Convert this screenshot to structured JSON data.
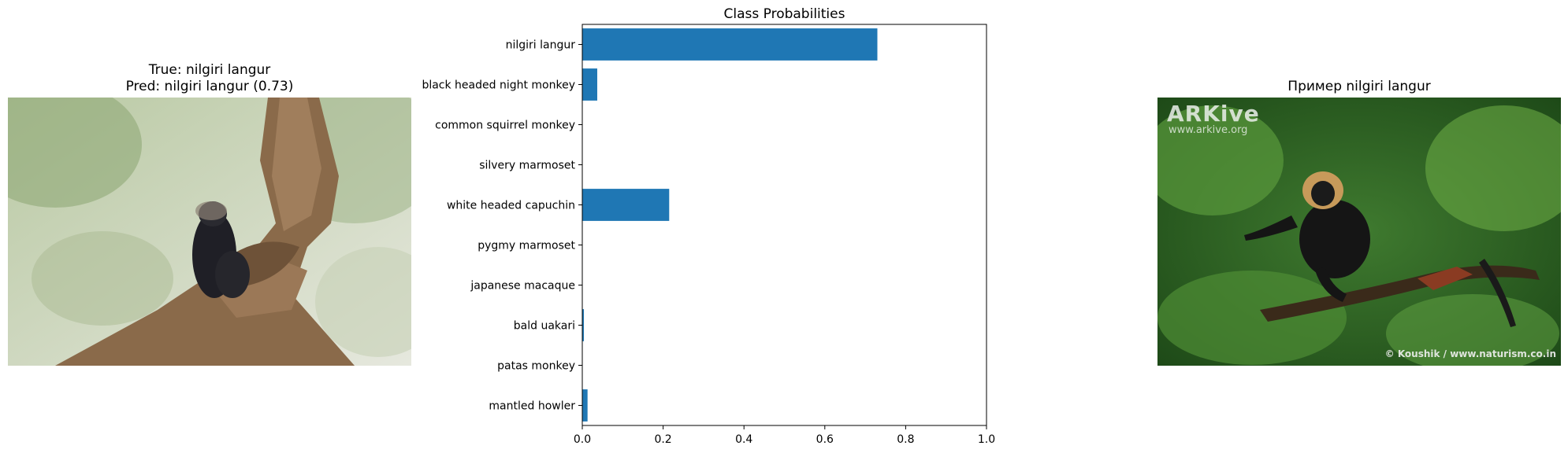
{
  "left_panel": {
    "title_line1": "True: nilgiri langur",
    "title_line2": "Pred: nilgiri langur (0.73)"
  },
  "right_panel": {
    "title": "Пример nilgiri langur",
    "overlay_logo": "ARKive",
    "overlay_url": "www.arkive.org",
    "overlay_credit": "© Koushik / www.naturism.co.in"
  },
  "colors": {
    "bar": "#1f77b4",
    "axis": "#000000"
  },
  "chart_data": {
    "type": "bar",
    "orientation": "horizontal",
    "title": "Class Probabilities",
    "xlabel": "",
    "ylabel": "",
    "categories": [
      "nilgiri langur",
      "black headed night monkey",
      "common squirrel monkey",
      "silvery marmoset",
      "white headed capuchin",
      "pygmy marmoset",
      "japanese macaque",
      "bald uakari",
      "patas monkey",
      "mantled howler"
    ],
    "values": [
      0.73,
      0.037,
      0.0,
      0.0,
      0.215,
      0.0,
      0.0,
      0.004,
      0.0,
      0.013
    ],
    "xlim": [
      0,
      1.0
    ],
    "xticks": [
      "0.0",
      "0.2",
      "0.4",
      "0.6",
      "0.8",
      "1.0"
    ],
    "grid": false
  }
}
